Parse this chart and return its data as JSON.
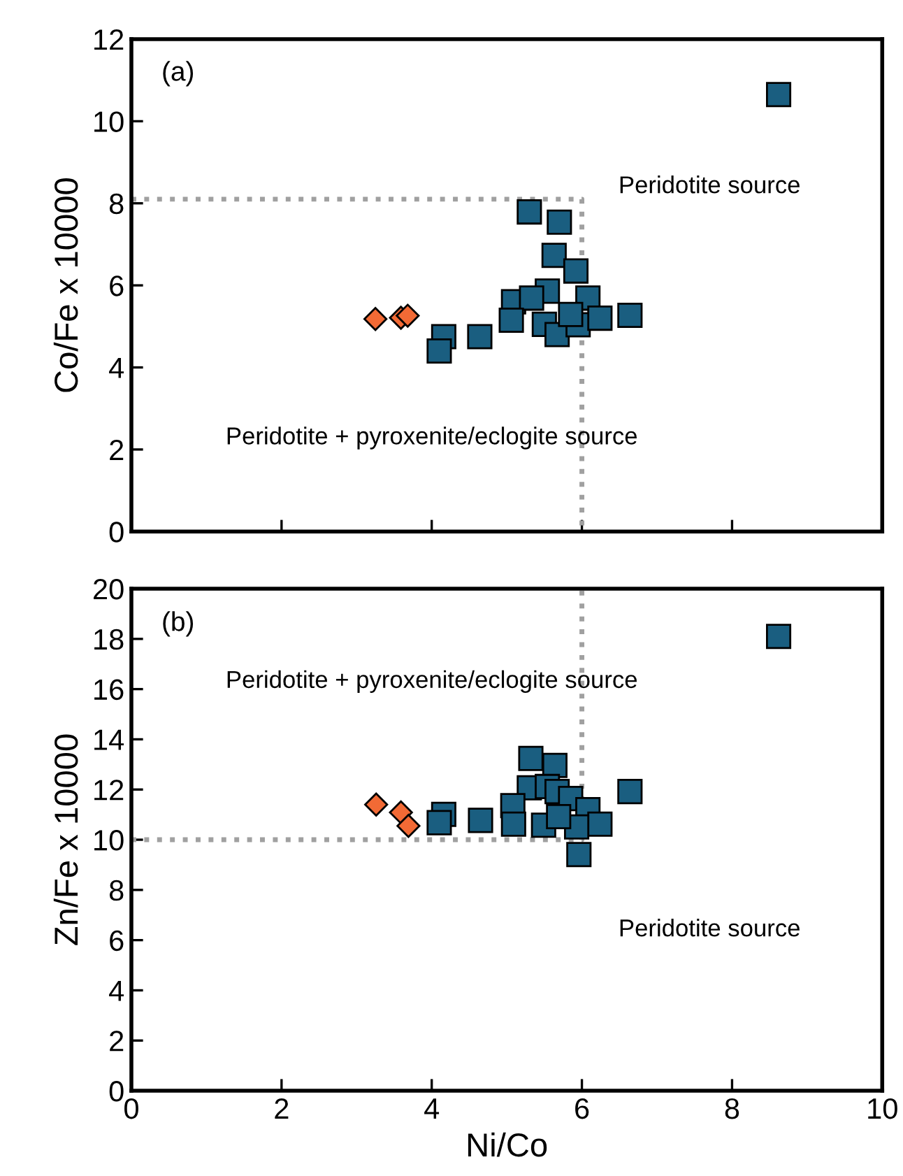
{
  "chart_data": [
    {
      "type": "scatter",
      "ylabel": "Co/Fe x 10000",
      "xlim": [
        0,
        10
      ],
      "xticks": [
        0,
        2,
        4,
        6,
        8,
        10
      ],
      "ylim": [
        0,
        12
      ],
      "yticks": [
        0,
        2,
        4,
        6,
        8,
        10,
        12
      ],
      "tick_labels": "y",
      "grid": false,
      "legend": false,
      "annotations": [
        "(a)",
        "Peridotite source",
        "Peridotite + pyroxenite/eclogite source"
      ],
      "series": [
        {
          "type": "line",
          "color": "#a0a0a0",
          "line_style": "dotted",
          "marker": "none",
          "x": [
            0,
            6,
            6
          ],
          "values": [
            8.1,
            8.1,
            0
          ]
        },
        {
          "color": "#1a5e80",
          "marker": "square",
          "x": [
            8.62,
            5.3,
            5.7,
            5.63,
            5.92,
            5.54,
            6.08,
            5.09,
            5.33,
            5.06,
            5.5,
            5.67,
            5.95,
            6.24,
            6.64,
            5.85,
            4.16,
            4.1,
            4.64
          ],
          "values": [
            10.65,
            7.79,
            7.54,
            6.73,
            6.35,
            5.86,
            5.69,
            5.6,
            5.69,
            5.15,
            5.05,
            4.8,
            5.04,
            5.2,
            5.27,
            5.29,
            4.75,
            4.4,
            4.75
          ]
        },
        {
          "color": "#f26a35",
          "marker": "diamond",
          "x": [
            3.25,
            3.59,
            3.68
          ],
          "values": [
            5.18,
            5.21,
            5.26
          ]
        }
      ]
    },
    {
      "type": "scatter",
      "xlabel": "Ni/Co",
      "ylabel": "Zn/Fe x 10000",
      "xlim": [
        0,
        10
      ],
      "xticks": [
        0,
        2,
        4,
        6,
        8,
        10
      ],
      "ylim": [
        0,
        20
      ],
      "yticks": [
        0,
        2,
        4,
        6,
        8,
        10,
        12,
        14,
        16,
        18,
        20
      ],
      "grid": false,
      "legend": false,
      "annotations": [
        "(b)",
        "Peridotite + pyroxenite/eclogite source",
        "Peridotite source"
      ],
      "series": [
        {
          "type": "line",
          "color": "#a0a0a0",
          "line_style": "dotted",
          "marker": "none",
          "x": [
            0,
            6,
            6
          ],
          "values": [
            10,
            10,
            20
          ]
        },
        {
          "color": "#1a5e80",
          "marker": "square",
          "x": [
            8.62,
            5.32,
            5.64,
            5.3,
            5.54,
            5.67,
            5.85,
            6.08,
            6.24,
            6.64,
            5.08,
            4.16,
            4.1,
            4.65,
            5.09,
            5.49,
            5.93,
            5.96,
            5.69
          ],
          "values": [
            18.1,
            13.24,
            12.96,
            12.07,
            12.12,
            11.92,
            11.64,
            11.2,
            10.62,
            11.92,
            11.36,
            11.01,
            10.68,
            10.77,
            10.62,
            10.58,
            10.51,
            9.41,
            10.92
          ]
        },
        {
          "color": "#f26a35",
          "marker": "diamond",
          "x": [
            3.26,
            3.59,
            3.69
          ],
          "values": [
            11.4,
            11.09,
            10.55
          ]
        }
      ]
    }
  ]
}
